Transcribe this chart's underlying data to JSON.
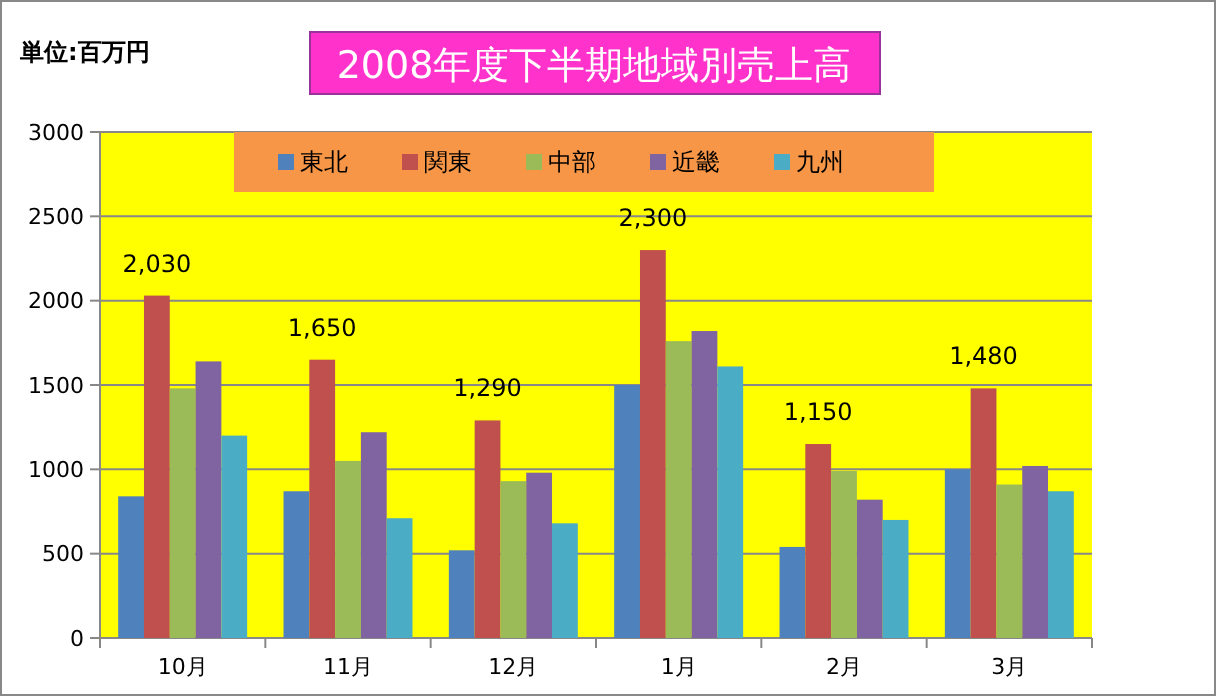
{
  "chart_data": {
    "type": "bar",
    "title": "2008年度下半期地域別売上高",
    "annotations": [
      "単位:百万円"
    ],
    "categories": [
      "10月",
      "11月",
      "12月",
      "1月",
      "2月",
      "3月"
    ],
    "series": [
      {
        "name": "東北",
        "color": "#4f81bd",
        "values": [
          840,
          870,
          520,
          1500,
          540,
          1000
        ]
      },
      {
        "name": "関東",
        "color": "#c0504d",
        "values": [
          2030,
          1650,
          1290,
          2300,
          1150,
          1480
        ],
        "value_labels": [
          "2,030",
          "1,650",
          "1,290",
          "2,300",
          "1,150",
          "1,480"
        ]
      },
      {
        "name": "中部",
        "color": "#9bbb59",
        "values": [
          1480,
          1050,
          930,
          1760,
          990,
          910
        ]
      },
      {
        "name": "近畿",
        "color": "#8064a2",
        "values": [
          1640,
          1220,
          980,
          1820,
          820,
          1020
        ]
      },
      {
        "name": "九州",
        "color": "#4bacc6",
        "values": [
          1200,
          710,
          680,
          1610,
          700,
          870
        ]
      }
    ],
    "ylim": [
      0,
      3000
    ],
    "yticks": [
      0,
      500,
      1000,
      1500,
      2000,
      2500,
      3000
    ],
    "grid": "y",
    "legend": "top"
  }
}
